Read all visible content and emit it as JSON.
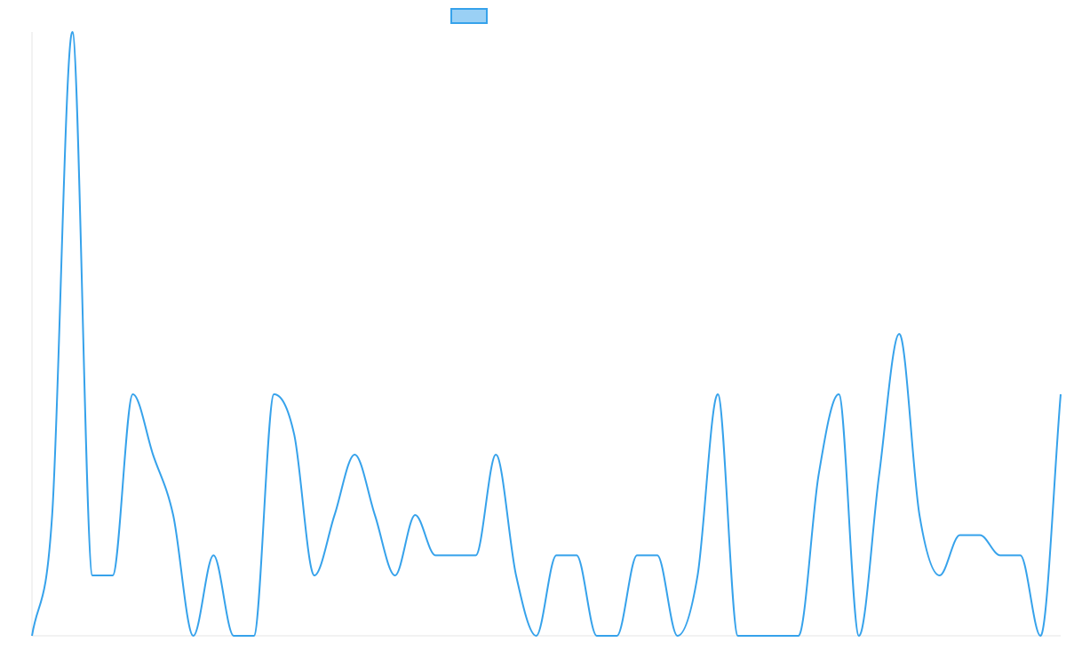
{
  "chart_data": {
    "type": "line",
    "title": "",
    "xlabel": "",
    "ylabel": "",
    "x": [
      0,
      1,
      2,
      3,
      4,
      5,
      6,
      7,
      8,
      9,
      10,
      11,
      12,
      13,
      14,
      15,
      16,
      17,
      18,
      19,
      20,
      21,
      22,
      23,
      24,
      25,
      26,
      27,
      28,
      29,
      30,
      31,
      32,
      33,
      34,
      35,
      36,
      37,
      38,
      39,
      40,
      41,
      42,
      43,
      44,
      45,
      46,
      47,
      48,
      49,
      50,
      51
    ],
    "series": [
      {
        "name": "",
        "color": "#36a2eb",
        "fill": "#9ad0f5",
        "values": [
          0,
          6,
          30,
          3,
          3,
          12,
          9,
          6,
          0,
          4,
          0,
          0,
          12,
          10,
          3,
          6,
          9,
          6,
          3,
          6,
          4,
          4,
          4,
          9,
          3,
          0,
          4,
          4,
          0,
          0,
          4,
          4,
          0,
          3,
          12,
          0,
          0,
          0,
          0,
          8,
          12,
          0,
          8,
          15,
          6,
          3,
          5,
          5,
          4,
          4,
          0,
          12
        ]
      }
    ],
    "ylim": [
      0,
      30
    ],
    "grid": false,
    "legend_position": "top"
  }
}
